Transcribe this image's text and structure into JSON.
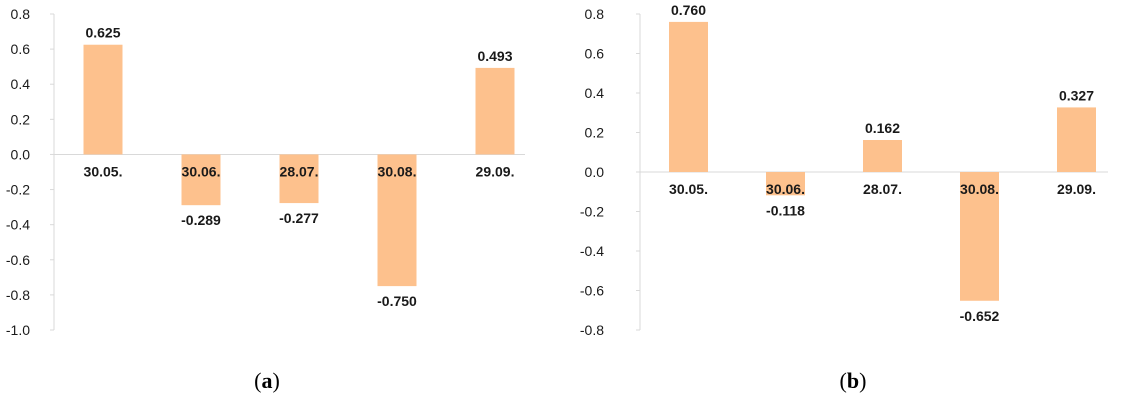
{
  "chart_data": [
    {
      "type": "bar",
      "panel_label": "a",
      "categories": [
        "30.05.",
        "30.06.",
        "28.07.",
        "30.08.",
        "29.09."
      ],
      "values": [
        0.625,
        -0.289,
        -0.277,
        -0.75,
        0.493
      ],
      "value_labels": [
        "0.625",
        "-0.289",
        "-0.277",
        "-0.750",
        "0.493"
      ],
      "ylim": [
        -1.0,
        0.8
      ],
      "yticks": [
        "0.8",
        "0.6",
        "0.4",
        "0.2",
        "0.0",
        "-0.2",
        "-0.4",
        "-0.6",
        "-0.8",
        "-1.0"
      ],
      "ytick_values": [
        0.8,
        0.6,
        0.4,
        0.2,
        0.0,
        -0.2,
        -0.4,
        -0.6,
        -0.8,
        -1.0
      ],
      "grid": false,
      "bar_color": "#FDC18D",
      "axis_color": "#d9d9d9"
    },
    {
      "type": "bar",
      "panel_label": "b",
      "categories": [
        "30.05.",
        "30.06.",
        "28.07.",
        "30.08.",
        "29.09."
      ],
      "values": [
        0.76,
        -0.118,
        0.162,
        -0.652,
        0.327
      ],
      "value_labels": [
        "0.760",
        "-0.118",
        "0.162",
        "-0.652",
        "0.327"
      ],
      "ylim": [
        -0.8,
        0.8
      ],
      "yticks": [
        "0.8",
        "0.6",
        "0.4",
        "0.2",
        "0.0",
        "-0.2",
        "-0.4",
        "-0.6",
        "-0.8"
      ],
      "ytick_values": [
        0.8,
        0.6,
        0.4,
        0.2,
        0.0,
        -0.2,
        -0.4,
        -0.6,
        -0.8
      ],
      "grid": false,
      "bar_color": "#FDC18D",
      "axis_color": "#d9d9d9"
    }
  ],
  "captions": {
    "open": "(",
    "a": "a",
    "b": "b",
    "close": ")"
  }
}
